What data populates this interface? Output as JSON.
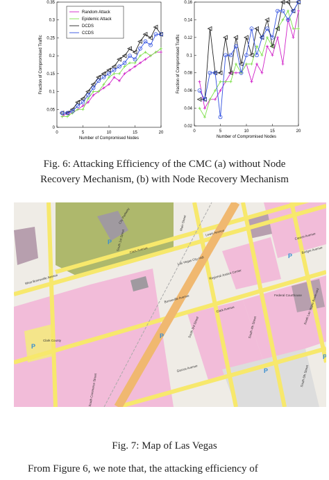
{
  "chart_data": [
    {
      "type": "line",
      "xlabel": "Number of Compromised Nodes",
      "ylabel": "Fraction of Compromised Traffic",
      "xlim": [
        0,
        20
      ],
      "xticks": [
        0,
        5,
        10,
        15,
        20
      ],
      "ylim": [
        0,
        0.35
      ],
      "yticks": [
        0,
        0.05,
        0.1,
        0.15,
        0.2,
        0.25,
        0.3,
        0.35
      ],
      "legend": "upper left",
      "x": [
        1,
        2,
        3,
        4,
        5,
        6,
        7,
        8,
        9,
        10,
        11,
        12,
        13,
        14,
        15,
        16,
        17,
        18,
        19,
        20
      ],
      "series": [
        {
          "name": "Random Attack",
          "color": "#d020c8",
          "marker": "plus",
          "values": [
            0.03,
            0.04,
            0.04,
            0.05,
            0.06,
            0.07,
            0.09,
            0.1,
            0.11,
            0.12,
            0.14,
            0.13,
            0.15,
            0.16,
            0.17,
            0.18,
            0.19,
            0.2,
            0.21,
            0.21
          ]
        },
        {
          "name": "Epidemic Attack",
          "color": "#7ee04a",
          "marker": "plus",
          "values": [
            0.03,
            0.03,
            0.04,
            0.05,
            0.05,
            0.08,
            0.1,
            0.1,
            0.12,
            0.14,
            0.15,
            0.15,
            0.17,
            0.18,
            0.18,
            0.2,
            0.21,
            0.2,
            0.21,
            0.22
          ]
        },
        {
          "name": "DCDS",
          "color": "#222222",
          "marker": "triangle",
          "values": [
            0.04,
            0.04,
            0.05,
            0.07,
            0.08,
            0.1,
            0.12,
            0.14,
            0.15,
            0.16,
            0.17,
            0.19,
            0.2,
            0.22,
            0.21,
            0.24,
            0.26,
            0.25,
            0.28,
            0.26
          ]
        },
        {
          "name": "CCDS",
          "color": "#3050e0",
          "marker": "circle",
          "values": [
            0.04,
            0.04,
            0.045,
            0.06,
            0.07,
            0.09,
            0.11,
            0.13,
            0.14,
            0.15,
            0.16,
            0.17,
            0.18,
            0.2,
            0.19,
            0.22,
            0.24,
            0.23,
            0.26,
            0.26
          ]
        }
      ]
    },
    {
      "type": "line",
      "xlabel": "Number of Compromised Nodes",
      "ylabel": "Fraction of Compromised Traffic",
      "xlim": [
        0,
        20
      ],
      "xticks": [
        0,
        5,
        10,
        15,
        20
      ],
      "ylim": [
        0.02,
        0.16
      ],
      "yticks": [
        0.02,
        0.04,
        0.06,
        0.08,
        0.1,
        0.12,
        0.14,
        0.16
      ],
      "x": [
        1,
        2,
        3,
        4,
        5,
        6,
        7,
        8,
        9,
        10,
        11,
        12,
        13,
        14,
        15,
        16,
        17,
        18,
        19,
        20
      ],
      "series": [
        {
          "color": "#d020c8",
          "marker": "plus",
          "values": [
            0.07,
            0.04,
            0.05,
            0.05,
            0.06,
            0.07,
            0.08,
            0.08,
            0.08,
            0.09,
            0.07,
            0.09,
            0.08,
            0.11,
            0.1,
            0.12,
            0.09,
            0.14,
            0.12,
            0.15
          ]
        },
        {
          "color": "#7ee04a",
          "marker": "plus",
          "values": [
            0.04,
            0.03,
            0.05,
            0.06,
            0.07,
            0.07,
            0.07,
            0.09,
            0.08,
            0.09,
            0.09,
            0.11,
            0.1,
            0.12,
            0.11,
            0.13,
            0.14,
            0.15,
            0.13,
            0.13
          ]
        },
        {
          "color": "#222222",
          "marker": "triangle",
          "values": [
            0.05,
            0.05,
            0.13,
            0.08,
            0.08,
            0.12,
            0.08,
            0.12,
            0.09,
            0.12,
            0.1,
            0.13,
            0.12,
            0.14,
            0.11,
            0.13,
            0.16,
            0.16,
            0.15,
            0.16
          ]
        },
        {
          "color": "#3050e0",
          "marker": "circle",
          "values": [
            0.06,
            0.05,
            0.08,
            0.08,
            0.03,
            0.1,
            0.1,
            0.11,
            0.08,
            0.1,
            0.13,
            0.1,
            0.12,
            0.13,
            0.12,
            0.15,
            0.15,
            0.14,
            0.15,
            0.16
          ]
        }
      ]
    }
  ],
  "captions": {
    "fig6": [
      "Fig. 6: Attacking Efficiency of the CMC (a) without Node",
      "Recovery Mechanism, (b) with Node Recovery Mechanism"
    ],
    "fig7": "Fig. 7: Map of Las Vegas"
  },
  "map": {
    "labels": [
      "Main Street",
      "Lewis Avenue",
      "Las Vegas City Hall",
      "Clark Avenue",
      "Regional Justice Center",
      "Bonneville Avenue",
      "South 3rd Street",
      "Federal Courthouse",
      "Clark County",
      "West Bonneville Avenue",
      "Garces Avenue",
      "Carson Avenue",
      "South 1st Street",
      "City Parkway",
      "Bridger Avenue",
      "South Commerce Street",
      "Clark Avenue",
      "South 4th Street",
      "South Las Vegas Boulevard",
      "South 6th Street"
    ],
    "parking": "P"
  },
  "body_text": "From Figure 6, we note that, the attacking efficiency of"
}
